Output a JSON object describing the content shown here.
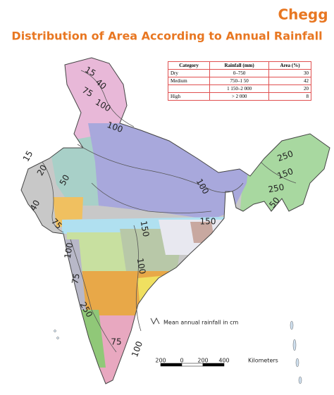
{
  "header": {
    "logo": "Chegg",
    "title": "Distribution of Area According to Annual Rainfall"
  },
  "table": {
    "columns": [
      "Category",
      "Rainfall (mm)",
      "Area (%)"
    ],
    "rows": [
      [
        "Dry",
        "0–750",
        "30"
      ],
      [
        "Medium",
        "750–1 50",
        "42"
      ],
      [
        null,
        "1 150–2 000",
        "20"
      ],
      [
        "High",
        "> 2 000",
        "8"
      ]
    ]
  },
  "map": {
    "contour_labels": [
      "15",
      "40",
      "75",
      "100",
      "100",
      "15",
      "20",
      "50",
      "40",
      "75",
      "100",
      "75",
      "250",
      "100",
      "250",
      "150",
      "250",
      "50",
      "150",
      "150",
      "100",
      "75",
      "100"
    ],
    "legend": "Mean annual rainfall in cm",
    "scale": {
      "labels": [
        "200",
        "0",
        "200",
        "400"
      ],
      "unit": "Kilometers"
    }
  }
}
